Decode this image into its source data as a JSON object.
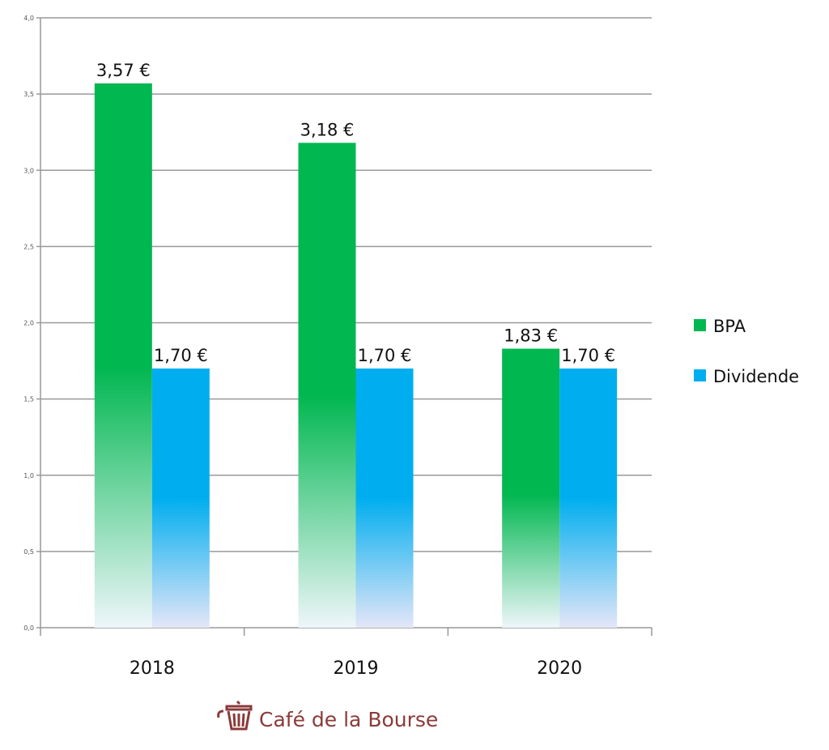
{
  "chart_data": {
    "type": "bar",
    "categories": [
      "2018",
      "2019",
      "2020"
    ],
    "series": [
      {
        "name": "BPA",
        "values": [
          3.57,
          3.18,
          1.83
        ],
        "labels": [
          "3,57 €",
          "3,18 €",
          "1,83 €"
        ],
        "color": "#00b750"
      },
      {
        "name": "Dividende",
        "values": [
          1.7,
          1.7,
          1.7
        ],
        "labels": [
          "1,70 €",
          "1,70 €",
          "1,70 €"
        ],
        "color": "#00aeef"
      }
    ],
    "ylim": [
      0,
      4
    ],
    "yticks": [
      "0,0",
      "0,5",
      "1,0",
      "1,5",
      "2,0",
      "2,5",
      "3,0",
      "3,5",
      "4,0"
    ],
    "grid": true,
    "legend": "right"
  },
  "logo": {
    "text": "Café de la Bourse",
    "color": "#8b3a3a"
  }
}
